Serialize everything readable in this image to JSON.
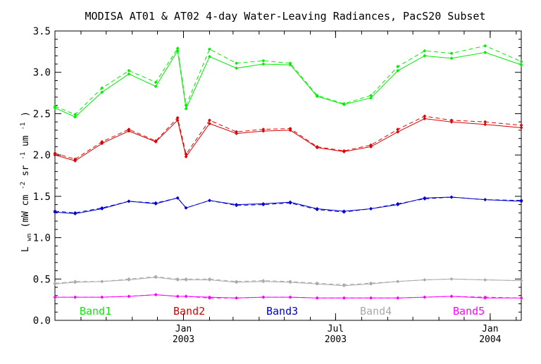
{
  "chart_data": {
    "type": "line",
    "title": "MODISA AT01 & AT02 4-day Water-Leaving Radiances, PacS20 Subset",
    "ylabel_main": "L",
    "ylabel_sub": "wn",
    "ylabel_unit_a": "(mW cm",
    "ylabel_sup_a": "-2",
    "ylabel_unit_b": " sr",
    "ylabel_sup_b": "-1",
    "ylabel_unit_c": " um",
    "ylabel_sup_c": "-1",
    "ylabel_unit_d": ")",
    "ylim": [
      0.0,
      3.5
    ],
    "yticks": [
      "0.0",
      "0.5",
      "1.0",
      "1.5",
      "2.0",
      "2.5",
      "3.0",
      "3.5"
    ],
    "xlim": [
      "2002-08-01",
      "2004-02-07"
    ],
    "xticks": [
      {
        "date": "2003-01-01",
        "line1": "Jan",
        "line2": "2003"
      },
      {
        "date": "2003-07-01",
        "line1": "Jul",
        "line2": "2003"
      },
      {
        "date": "2004-01-01",
        "line1": "Jan",
        "line2": "2004"
      }
    ],
    "dates": [
      "2002-08-01",
      "2002-08-25",
      "2002-09-26",
      "2002-10-28",
      "2002-11-29",
      "2002-12-25",
      "2003-01-04",
      "2003-02-01",
      "2003-03-05",
      "2003-04-06",
      "2003-05-08",
      "2003-06-09",
      "2003-07-11",
      "2003-08-12",
      "2003-09-13",
      "2003-10-15",
      "2003-11-16",
      "2003-12-26",
      "2004-02-07"
    ],
    "series": [
      {
        "name": "Band1",
        "color": "#00ee00",
        "solid": [
          2.57,
          2.46,
          2.76,
          2.98,
          2.83,
          3.26,
          2.56,
          3.19,
          3.05,
          3.1,
          3.09,
          2.71,
          2.61,
          2.69,
          3.02,
          3.2,
          3.17,
          3.24,
          3.09
        ],
        "dashed": [
          2.59,
          2.49,
          2.81,
          3.02,
          2.88,
          3.29,
          2.6,
          3.28,
          3.11,
          3.14,
          3.11,
          2.72,
          2.62,
          2.72,
          3.07,
          3.26,
          3.23,
          3.32,
          3.13
        ]
      },
      {
        "name": "Band2",
        "color": "#dd0000",
        "solid": [
          2.0,
          1.93,
          2.14,
          2.29,
          2.16,
          2.42,
          1.98,
          2.38,
          2.26,
          2.29,
          2.3,
          2.09,
          2.04,
          2.1,
          2.28,
          2.44,
          2.4,
          2.37,
          2.33
        ],
        "dashed": [
          2.02,
          1.95,
          2.16,
          2.31,
          2.17,
          2.45,
          2.01,
          2.42,
          2.28,
          2.31,
          2.32,
          2.1,
          2.05,
          2.12,
          2.31,
          2.47,
          2.42,
          2.4,
          2.36
        ]
      },
      {
        "name": "Band3",
        "color": "#0000cc",
        "solid": [
          1.31,
          1.29,
          1.35,
          1.44,
          1.41,
          1.48,
          1.36,
          1.45,
          1.4,
          1.41,
          1.43,
          1.35,
          1.32,
          1.35,
          1.4,
          1.48,
          1.49,
          1.46,
          1.44
        ],
        "dashed": [
          1.32,
          1.3,
          1.36,
          1.44,
          1.42,
          1.48,
          1.36,
          1.45,
          1.39,
          1.4,
          1.42,
          1.34,
          1.31,
          1.35,
          1.41,
          1.47,
          1.49,
          1.46,
          1.45
        ]
      },
      {
        "name": "Band4",
        "color": "#aaaaaa",
        "solid": [
          0.44,
          0.46,
          0.47,
          0.49,
          0.52,
          0.49,
          0.49,
          0.49,
          0.46,
          0.47,
          0.46,
          0.44,
          0.42,
          0.44,
          0.47,
          0.49,
          0.5,
          0.49,
          0.48
        ],
        "dashed": [
          0.45,
          0.47,
          0.47,
          0.5,
          0.53,
          0.5,
          0.5,
          0.5,
          0.47,
          0.48,
          0.47,
          0.45,
          0.43,
          0.45,
          0.47,
          0.49,
          0.5,
          0.49,
          0.48
        ]
      },
      {
        "name": "Band5",
        "color": "#ff00ff",
        "solid": [
          0.28,
          0.28,
          0.28,
          0.29,
          0.31,
          0.29,
          0.29,
          0.28,
          0.27,
          0.28,
          0.28,
          0.27,
          0.27,
          0.27,
          0.27,
          0.28,
          0.29,
          0.27,
          0.27
        ],
        "dashed": [
          0.28,
          0.28,
          0.28,
          0.29,
          0.31,
          0.29,
          0.29,
          0.27,
          0.27,
          0.28,
          0.28,
          0.27,
          0.27,
          0.27,
          0.27,
          0.28,
          0.29,
          0.28,
          0.27
        ]
      }
    ],
    "legend_placement": "bottom, inside plot, colored text labels",
    "grid": false
  }
}
